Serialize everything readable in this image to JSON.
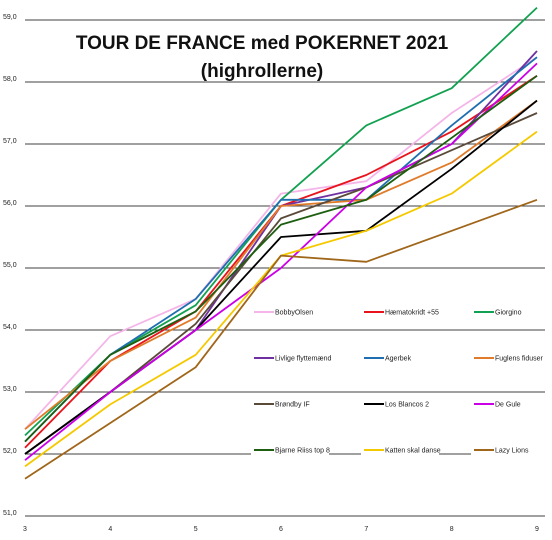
{
  "chart_data": {
    "type": "line",
    "title": "TOUR DE FRANCE med POKERNET 2021",
    "subtitle": "(highrollerne)",
    "xlabel": "",
    "ylabel": "",
    "x": [
      3,
      4,
      5,
      6,
      7,
      8,
      9
    ],
    "x_tick_labels": [
      "3",
      "4",
      "5",
      "6",
      "7",
      "8",
      "9"
    ],
    "ylim": [
      51.0,
      59.0
    ],
    "y_ticks": [
      51.0,
      52.0,
      53.0,
      54.0,
      55.0,
      56.0,
      57.0,
      58.0,
      59.0
    ],
    "y_tick_labels": [
      "51,0",
      "52,0",
      "53,0",
      "54,0",
      "55,0",
      "56,0",
      "57,0",
      "58,0",
      "59,0"
    ],
    "grid": "horizontal",
    "legend_position": "inside-right",
    "series": [
      {
        "name": "BobbyOlsen",
        "color": "#f4b6e8",
        "values": [
          52.4,
          53.9,
          54.5,
          56.2,
          56.4,
          57.5,
          58.4
        ]
      },
      {
        "name": "Hæmatokridt +55",
        "color": "#e8141b",
        "values": [
          52.1,
          53.5,
          54.3,
          56.0,
          56.5,
          57.2,
          58.1
        ]
      },
      {
        "name": "Giorgino",
        "color": "#12a150",
        "values": [
          52.3,
          53.6,
          54.4,
          56.1,
          57.3,
          57.9,
          59.2
        ]
      },
      {
        "name": "Livlige flyttemænd",
        "color": "#7030a0",
        "values": [
          52.0,
          53.0,
          54.0,
          56.0,
          56.3,
          57.0,
          58.5
        ]
      },
      {
        "name": "Agerbek",
        "color": "#1f6fb0",
        "values": [
          52.2,
          53.6,
          54.5,
          56.1,
          56.1,
          57.3,
          58.4
        ]
      },
      {
        "name": "Fuglens fiduser",
        "color": "#e07b2a",
        "values": [
          52.4,
          53.5,
          54.2,
          56.0,
          56.1,
          56.7,
          57.7
        ]
      },
      {
        "name": "Brøndby IF",
        "color": "#5a4a3a",
        "values": [
          52.0,
          53.0,
          54.1,
          55.8,
          56.3,
          56.9,
          57.5
        ]
      },
      {
        "name": "Los Blancos 2",
        "color": "#000000",
        "values": [
          52.0,
          53.0,
          54.0,
          55.5,
          55.6,
          56.6,
          57.7
        ]
      },
      {
        "name": "De Gule",
        "color": "#cc00e6",
        "values": [
          51.9,
          53.0,
          54.0,
          55.0,
          56.3,
          57.0,
          58.3
        ]
      },
      {
        "name": "Bjarne Riiss top 8",
        "color": "#1d5e10",
        "values": [
          52.2,
          53.6,
          54.3,
          55.7,
          56.1,
          57.1,
          58.1
        ]
      },
      {
        "name": "Katten skal danse",
        "color": "#f5c900",
        "values": [
          51.8,
          52.8,
          53.6,
          55.2,
          55.6,
          56.2,
          57.2
        ]
      },
      {
        "name": "Lazy Lions",
        "color": "#a0661a",
        "values": [
          51.6,
          52.5,
          53.4,
          55.2,
          55.1,
          55.6,
          56.1
        ]
      }
    ]
  }
}
